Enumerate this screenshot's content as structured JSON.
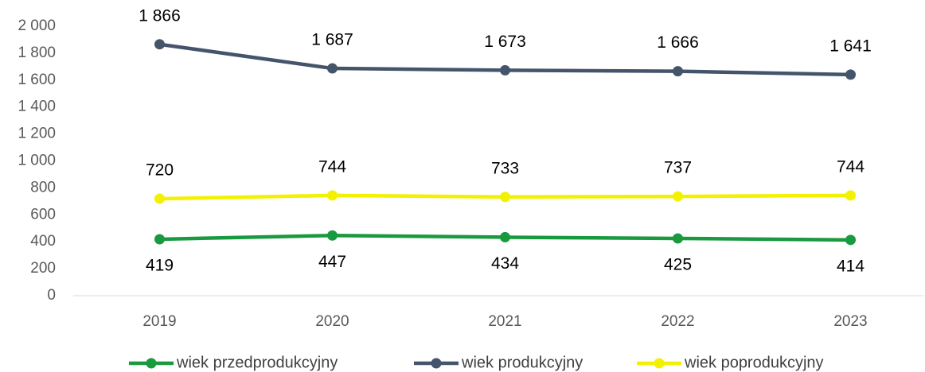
{
  "chart_data": {
    "type": "line",
    "categories": [
      "2019",
      "2020",
      "2021",
      "2022",
      "2023"
    ],
    "series": [
      {
        "name": "wiek przedprodukcyjny",
        "color": "#1a9a3e",
        "values": [
          419,
          447,
          434,
          425,
          414
        ],
        "label_position": "below"
      },
      {
        "name": "wiek produkcyjny",
        "color": "#44546a",
        "values": [
          1866,
          1687,
          1673,
          1666,
          1641
        ],
        "value_labels": [
          "1 866",
          "1 687",
          "1 673",
          "1 666",
          "1 641"
        ],
        "label_position": "above"
      },
      {
        "name": "wiek poprodukcyjny",
        "color": "#f2f200",
        "values": [
          720,
          744,
          733,
          737,
          744
        ],
        "label_position": "above"
      }
    ],
    "ylim": [
      0,
      2000
    ],
    "yticks": [
      0,
      200,
      400,
      600,
      800,
      {
        "value": 1000,
        "label": "1 000"
      },
      {
        "value": 1200,
        "label": "1 200"
      },
      {
        "value": 1400,
        "label": "1 400"
      },
      {
        "value": 1600,
        "label": "1 600"
      },
      {
        "value": 1800,
        "label": "1 800"
      },
      {
        "value": 2000,
        "label": "2 000"
      }
    ],
    "legend": "bottom"
  }
}
